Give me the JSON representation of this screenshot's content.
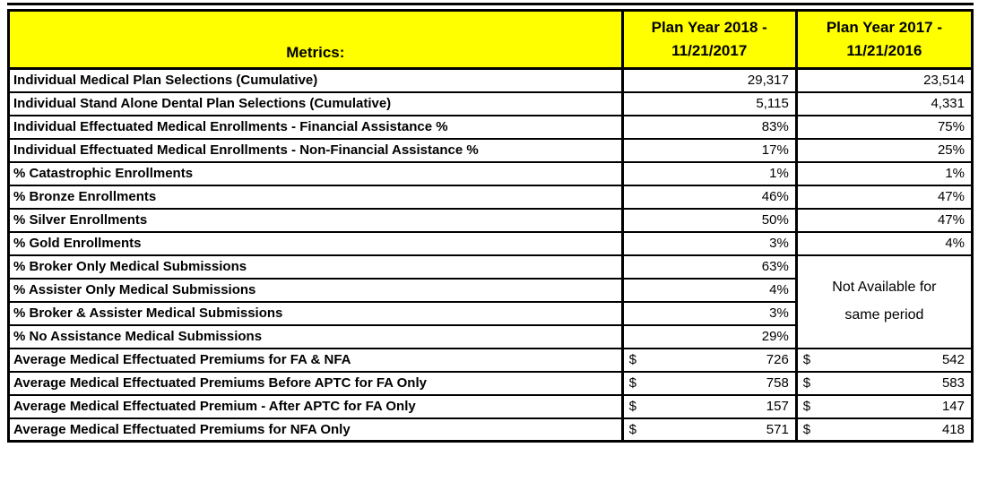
{
  "colors": {
    "header_bg": "#FFFF00",
    "border": "#000000",
    "text": "#000000",
    "page_bg": "#FFFFFF"
  },
  "header": {
    "metrics_label": "Metrics:",
    "col_2018_line1": "Plan Year 2018 -",
    "col_2018_line2": "11/21/2017",
    "col_2017_line1": "Plan Year 2017 -",
    "col_2017_line2": "11/21/2016"
  },
  "merged_note": {
    "line1": "Not Available for",
    "line2": "same period"
  },
  "rows": [
    {
      "label": "Individual Medical Plan Selections (Cumulative)",
      "v2018": "29,317",
      "v2017": "23,514"
    },
    {
      "label": "Individual Stand Alone Dental Plan Selections (Cumulative)",
      "v2018": "5,115",
      "v2017": "4,331"
    },
    {
      "label": "Individual Effectuated Medical Enrollments - Financial Assistance %",
      "v2018": "83%",
      "v2017": "75%"
    },
    {
      "label": "Individual Effectuated Medical Enrollments - Non-Financial Assistance %",
      "v2018": "17%",
      "v2017": "25%"
    },
    {
      "label": "% Catastrophic Enrollments",
      "v2018": "1%",
      "v2017": "1%"
    },
    {
      "label": "% Bronze Enrollments",
      "v2018": "46%",
      "v2017": "47%"
    },
    {
      "label": "% Silver Enrollments",
      "v2018": "50%",
      "v2017": "47%"
    },
    {
      "label": "% Gold Enrollments",
      "v2018": "3%",
      "v2017": "4%"
    },
    {
      "label": "% Broker Only Medical Submissions",
      "v2018": "63%"
    },
    {
      "label": "% Assister Only Medical Submissions",
      "v2018": "4%"
    },
    {
      "label": "% Broker & Assister Medical Submissions",
      "v2018": "3%"
    },
    {
      "label": "% No Assistance Medical Submissions",
      "v2018": "29%"
    },
    {
      "label": "Average Medical Effectuated Premiums for FA & NFA",
      "currency": "$",
      "v2018": "726",
      "v2017": "542"
    },
    {
      "label": "Average Medical Effectuated Premiums Before APTC for FA Only",
      "currency": "$",
      "v2018": "758",
      "v2017": "583"
    },
    {
      "label": "Average Medical Effectuated Premium - After APTC for FA Only",
      "currency": "$",
      "v2018": "157",
      "v2017": "147"
    },
    {
      "label": "Average Medical Effectuated Premiums for NFA Only",
      "currency": "$",
      "v2018": "571",
      "v2017": "418"
    }
  ]
}
